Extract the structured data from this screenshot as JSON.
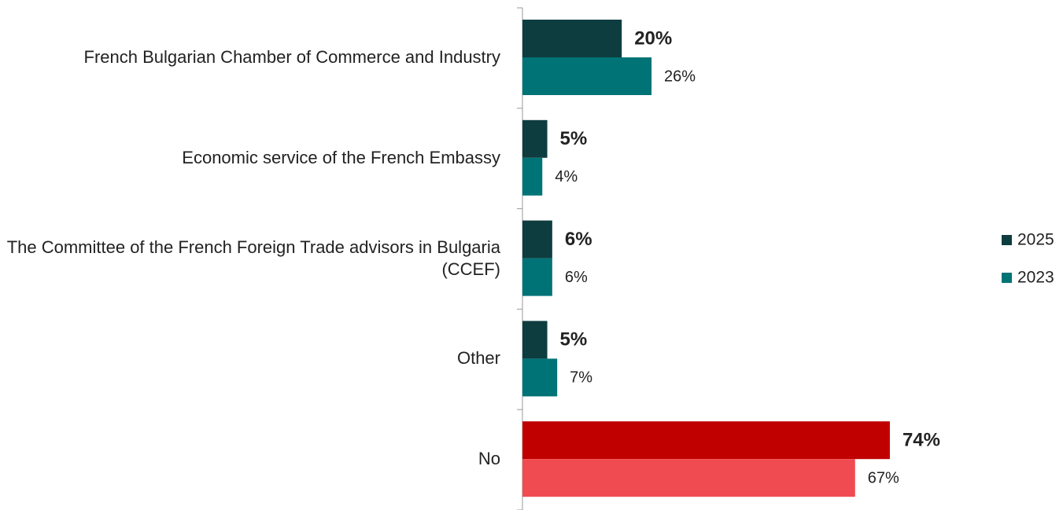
{
  "chart_data": {
    "type": "bar",
    "orientation": "horizontal",
    "categories": [
      "French Bulgarian Chamber of Commerce and Industry",
      "Economic service of the French Embassy",
      "The Committee of the French Foreign Trade advisors in Bulgaria (CCEF)",
      "Other",
      "No"
    ],
    "series": [
      {
        "name": "2025",
        "color": "#0e3d3f",
        "colors": [
          "#0e3d3f",
          "#0e3d3f",
          "#0e3d3f",
          "#0e3d3f",
          "#c00000"
        ],
        "values": [
          20,
          5,
          6,
          5,
          74
        ],
        "value_labels": [
          "20%",
          "5%",
          "6%",
          "5%",
          "74%"
        ]
      },
      {
        "name": "2023",
        "color": "#007377",
        "colors": [
          "#007377",
          "#007377",
          "#007377",
          "#007377",
          "#f04b50"
        ],
        "values": [
          26,
          4,
          6,
          7,
          67
        ],
        "value_labels": [
          "26%",
          "4%",
          "6%",
          "7%",
          "67%"
        ]
      }
    ],
    "xlim": [
      0,
      100
    ],
    "legend": "right"
  }
}
